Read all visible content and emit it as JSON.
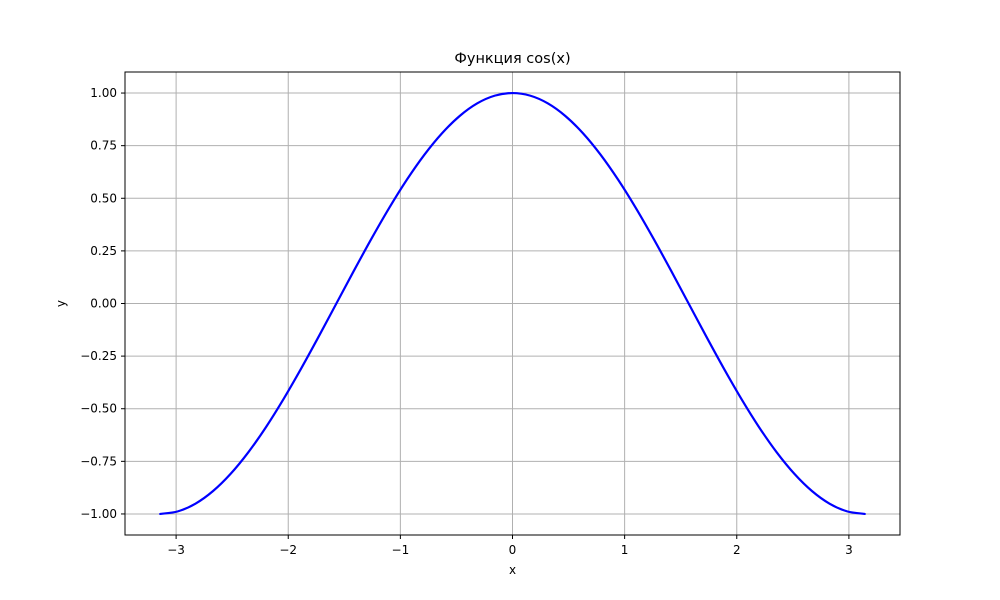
{
  "chart_data": {
    "type": "line",
    "title": "Функция cos(x)",
    "xlabel": "x",
    "ylabel": "y",
    "xlim": [
      -3.4558,
      3.4558
    ],
    "ylim": [
      -1.1,
      1.1
    ],
    "grid": true,
    "x_ticks": [
      -3,
      -2,
      -1,
      0,
      1,
      2,
      3
    ],
    "x_tick_labels": [
      "−3",
      "−2",
      "−1",
      "0",
      "1",
      "2",
      "3"
    ],
    "y_ticks": [
      -1.0,
      -0.75,
      -0.5,
      -0.25,
      0.0,
      0.25,
      0.5,
      0.75,
      1.0
    ],
    "y_tick_labels": [
      "−1.00",
      "−0.75",
      "−0.50",
      "−0.25",
      "0.00",
      "0.25",
      "0.50",
      "0.75",
      "1.00"
    ],
    "series": [
      {
        "color": "#0000ff",
        "x": [
          -3.1416,
          -2.9845,
          -2.8274,
          -2.6704,
          -2.5133,
          -2.3562,
          -2.1991,
          -2.042,
          -1.885,
          -1.7279,
          -1.5708,
          -1.4137,
          -1.2566,
          -1.0996,
          -0.9425,
          -0.7854,
          -0.6283,
          -0.4712,
          -0.3142,
          -0.1571,
          0.0,
          0.1571,
          0.3142,
          0.4712,
          0.6283,
          0.7854,
          0.9425,
          1.0996,
          1.2566,
          1.4137,
          1.5708,
          1.7279,
          1.885,
          2.042,
          2.1991,
          2.3562,
          2.5133,
          2.6704,
          2.8274,
          2.9845,
          3.1416
        ],
        "y": [
          -1.0,
          -0.9877,
          -0.9511,
          -0.891,
          -0.809,
          -0.7071,
          -0.5878,
          -0.454,
          -0.309,
          -0.1564,
          0.0,
          0.1564,
          0.309,
          0.454,
          0.5878,
          0.7071,
          0.809,
          0.891,
          0.9511,
          0.9877,
          1.0,
          0.9877,
          0.9511,
          0.891,
          0.809,
          0.7071,
          0.5878,
          0.454,
          0.309,
          0.1564,
          0.0,
          -0.1564,
          -0.309,
          -0.454,
          -0.5878,
          -0.7071,
          -0.809,
          -0.891,
          -0.9511,
          -0.9877,
          -1.0
        ]
      }
    ]
  },
  "colors": {
    "grid": "#b0b0b0",
    "axes": "#000000",
    "line": "#0000ff"
  }
}
